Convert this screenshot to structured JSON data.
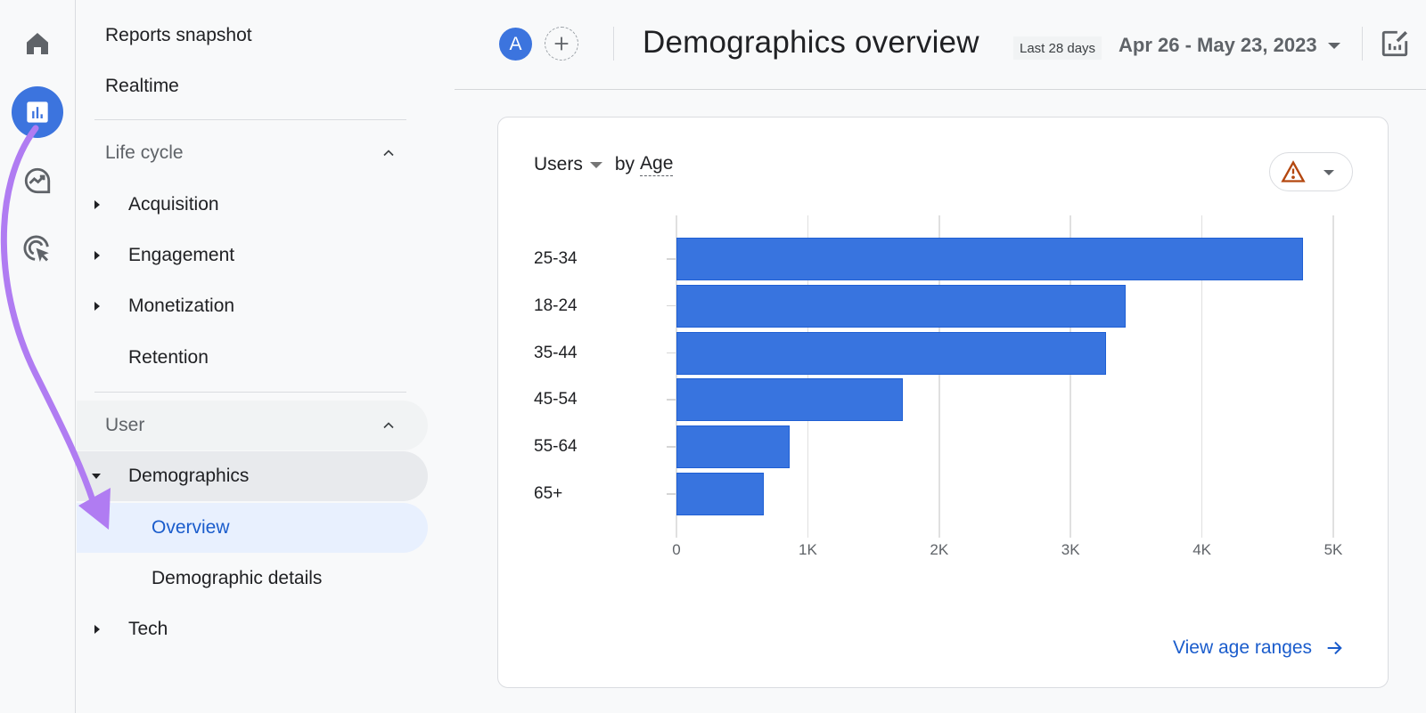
{
  "rail": {
    "items": [
      {
        "name": "home",
        "icon": "home-icon"
      },
      {
        "name": "reports",
        "icon": "bar-chart-icon",
        "active": true
      },
      {
        "name": "explore",
        "icon": "explore-trend-icon"
      },
      {
        "name": "advertising",
        "icon": "target-cursor-icon"
      }
    ]
  },
  "nav": {
    "reports_snapshot": "Reports snapshot",
    "realtime": "Realtime",
    "lifecycle": {
      "label": "Life cycle",
      "items": [
        "Acquisition",
        "Engagement",
        "Monetization",
        "Retention"
      ]
    },
    "user": {
      "label": "User",
      "demographics": "Demographics",
      "overview": "Overview",
      "demographic_details": "Demographic details",
      "tech": "Tech"
    }
  },
  "header": {
    "avatar_letter": "A",
    "title": "Demographics overview",
    "range_chip": "Last 28 days",
    "date_range": "Apr 26 - May 23, 2023"
  },
  "card": {
    "metric": "Users",
    "by": "by",
    "dimension": "Age",
    "link": "View age ranges"
  },
  "colors": {
    "accent": "#3c74de",
    "bar": "#3874df",
    "link": "#1a5ccc",
    "warning": "#b4470f",
    "annotation": "#b07cf2"
  },
  "chart_data": {
    "type": "bar",
    "orientation": "horizontal",
    "title": "Users by Age",
    "xlabel": "",
    "ylabel": "",
    "categories": [
      "25-34",
      "18-24",
      "35-44",
      "45-54",
      "55-64",
      "65+"
    ],
    "values": [
      4770,
      3420,
      3270,
      1720,
      860,
      665
    ],
    "xlim": [
      0,
      5000
    ],
    "x_ticks": [
      "0",
      "1K",
      "2K",
      "3K",
      "4K",
      "5K"
    ],
    "grid": true,
    "legend": null
  }
}
